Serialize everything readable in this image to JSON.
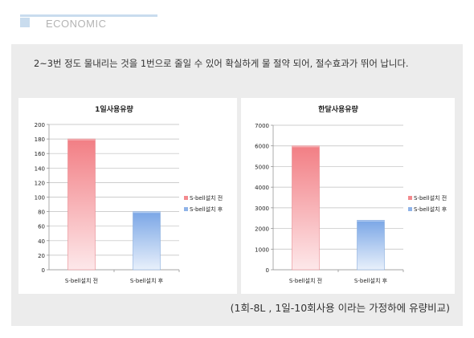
{
  "header": {
    "title": "ECONOMIC"
  },
  "description": "2~3번 정도 물내리는 것을 1번으로 줄일 수 있어 확실하게 물 절약 되어, 절수효과가 뛰어 납니다.",
  "caption": "(1회-8L , 1일-10회사용 이라는 가정하에 유량비교)",
  "colors": {
    "before": "#f38a8e",
    "after": "#8fb3e8",
    "grid": "#bdbdbd"
  },
  "chart_data": [
    {
      "type": "bar",
      "title": "1일사용유량",
      "categories": [
        "S-bell설치 전",
        "S-bell설치 후"
      ],
      "values": [
        180,
        80
      ],
      "ylim": [
        0,
        200
      ],
      "yticks": [
        0,
        20,
        40,
        60,
        80,
        100,
        120,
        140,
        160,
        180,
        200
      ],
      "legend": [
        "S-bell설치 전",
        "S-bell설치 후"
      ],
      "legend_position": "right",
      "grid": true
    },
    {
      "type": "bar",
      "title": "한달사용유량",
      "categories": [
        "S-bell설치 전",
        "S-bell설치 후"
      ],
      "values": [
        6000,
        2400
      ],
      "ylim": [
        0,
        7000
      ],
      "yticks": [
        0,
        1000,
        2000,
        3000,
        4000,
        5000,
        6000,
        7000
      ],
      "legend": [
        "S-bell설치 전",
        "S-bell설치 후"
      ],
      "legend_position": "right",
      "grid": true
    }
  ]
}
